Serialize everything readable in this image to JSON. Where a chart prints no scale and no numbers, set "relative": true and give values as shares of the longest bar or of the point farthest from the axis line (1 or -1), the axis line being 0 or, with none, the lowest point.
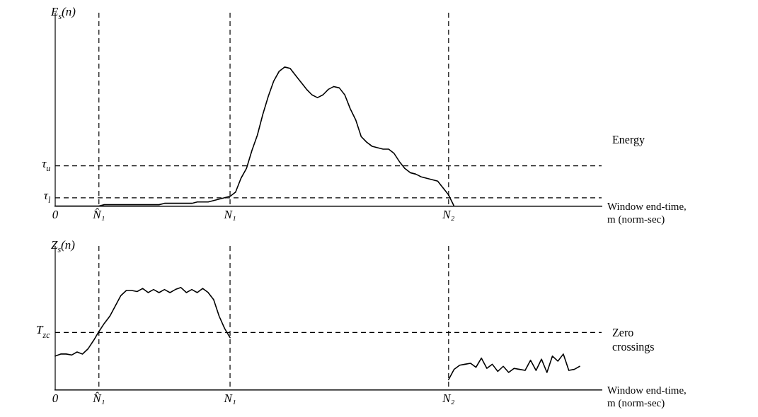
{
  "chart_data": [
    {
      "type": "line",
      "relative": true,
      "ylabel": "E$_{s}$(n)",
      "xlabel": "Window end-time, m (norm-sec)",
      "grid": false,
      "legend": false,
      "marker": "none",
      "line_style": "solid",
      "categories": [
        "0",
        null,
        null,
        null,
        null,
        null,
        null,
        null,
        "N̂₁",
        null,
        null,
        null,
        null,
        null,
        null,
        null,
        null,
        null,
        null,
        null,
        null,
        null,
        null,
        null,
        null,
        null,
        null,
        null,
        null,
        null,
        null,
        null,
        "N₁",
        null,
        null,
        null,
        null,
        null,
        null,
        null,
        null,
        null,
        null,
        null,
        null,
        null,
        null,
        null,
        null,
        null,
        null,
        null,
        null,
        null,
        null,
        null,
        null,
        null,
        null,
        null,
        null,
        null,
        null,
        null,
        null,
        null,
        null,
        null,
        null,
        null,
        null,
        null,
        "N₂",
        null,
        null,
        null,
        null,
        null,
        null,
        null,
        null,
        null,
        null,
        null,
        null,
        null,
        null,
        null,
        null,
        null,
        null,
        null,
        null,
        null,
        null,
        null,
        null,
        null,
        null,
        null,
        null
      ],
      "annotations": [
        "Energy"
      ],
      "series": [
        {
          "color": "#000000",
          "values": [
            0,
            0,
            0,
            0,
            0,
            0,
            0,
            0,
            0,
            0.01,
            0.01,
            0.01,
            0.01,
            0.01,
            0.01,
            0.01,
            0.01,
            0.01,
            0.01,
            0.01,
            0.02,
            0.02,
            0.02,
            0.02,
            0.02,
            0.02,
            0.03,
            0.03,
            0.03,
            0.04,
            0.05,
            0.06,
            0.07,
            0.1,
            0.2,
            0.27,
            0.4,
            0.51,
            0.66,
            0.79,
            0.9,
            0.97,
            1,
            0.99,
            0.94,
            0.89,
            0.84,
            0.8,
            0.78,
            0.8,
            0.84,
            0.86,
            0.85,
            0.8,
            0.7,
            0.62,
            0.5,
            0.46,
            0.43,
            0.42,
            0.41,
            0.41,
            0.38,
            0.32,
            0.27,
            0.24,
            0.23,
            0.21,
            0.2,
            0.19,
            0.18,
            0.13,
            0.08,
            0,
            null,
            null,
            null,
            null,
            null,
            null,
            null,
            null,
            null,
            null,
            null,
            null,
            null,
            null,
            null,
            null,
            null,
            null,
            null,
            null,
            null,
            null,
            null,
            null,
            null,
            null,
            null
          ]
        }
      ],
      "ref_lines": [
        {
          "axis": "x",
          "value": "N̂₁",
          "line_style": "dashed",
          "color": "#000000"
        },
        {
          "axis": "x",
          "value": "N₁",
          "line_style": "dashed",
          "color": "#000000"
        },
        {
          "axis": "x",
          "value": "N₂",
          "line_style": "dashed",
          "color": "#000000"
        },
        {
          "axis": "y",
          "value": 0.29,
          "label": "τ$_{u}$",
          "line_style": "dashed",
          "color": "#000000"
        },
        {
          "axis": "y",
          "value": 0.06,
          "label": "τ$_{l}$",
          "line_style": "dashed",
          "color": "#000000"
        }
      ]
    },
    {
      "type": "line",
      "relative": true,
      "ylabel": "Z$_{s}$(n)",
      "xlabel": "Window end-time, m (norm-sec)",
      "grid": false,
      "legend": false,
      "marker": "none",
      "line_style": "solid",
      "categories": [
        "0",
        null,
        null,
        null,
        null,
        null,
        null,
        null,
        "N̂₁",
        null,
        null,
        null,
        null,
        null,
        null,
        null,
        null,
        null,
        null,
        null,
        null,
        null,
        null,
        null,
        null,
        null,
        null,
        null,
        null,
        null,
        null,
        null,
        "N₁",
        null,
        null,
        null,
        null,
        null,
        null,
        null,
        null,
        null,
        null,
        null,
        null,
        null,
        null,
        null,
        null,
        null,
        null,
        null,
        null,
        null,
        null,
        null,
        null,
        null,
        null,
        null,
        null,
        null,
        null,
        null,
        null,
        null,
        null,
        null,
        null,
        null,
        null,
        null,
        "N₂",
        null,
        null,
        null,
        null,
        null,
        null,
        null,
        null,
        null,
        null,
        null,
        null,
        null,
        null,
        null,
        null,
        null,
        null,
        null,
        null,
        null,
        null,
        null,
        null,
        null,
        null,
        null,
        null
      ],
      "annotations": [
        "Zero crossings"
      ],
      "series": [
        {
          "color": "#000000",
          "values": [
            0.33,
            0.35,
            0.35,
            0.34,
            0.37,
            0.35,
            0.4,
            0.48,
            0.57,
            0.65,
            0.72,
            0.82,
            0.92,
            0.97,
            0.97,
            0.96,
            0.99,
            0.95,
            0.98,
            0.95,
            0.98,
            0.95,
            0.98,
            1,
            0.95,
            0.98,
            0.95,
            0.99,
            0.95,
            0.88,
            0.72,
            0.6,
            0.51,
            null,
            null,
            null,
            null,
            null,
            null,
            null,
            null,
            null,
            null,
            null,
            null,
            null,
            null,
            null,
            null,
            null,
            null,
            null,
            null,
            null,
            null,
            null,
            null,
            null,
            null,
            null,
            null,
            null,
            null,
            null,
            null,
            null,
            null,
            null,
            null,
            null,
            null,
            null,
            0.1,
            0.2,
            0.24,
            0.25,
            0.26,
            0.22,
            0.31,
            0.21,
            0.25,
            0.18,
            0.23,
            0.17,
            0.21,
            0.2,
            0.19,
            0.29,
            0.19,
            0.3,
            0.17,
            0.33,
            0.28,
            0.35,
            0.19,
            0.2,
            0.23,
            null,
            null,
            null,
            null
          ]
        }
      ],
      "ref_lines": [
        {
          "axis": "x",
          "value": "N̂₁",
          "line_style": "dashed",
          "color": "#000000"
        },
        {
          "axis": "x",
          "value": "N₁",
          "line_style": "dashed",
          "color": "#000000"
        },
        {
          "axis": "x",
          "value": "N₂",
          "line_style": "dashed",
          "color": "#000000"
        },
        {
          "axis": "y",
          "value": 0.56,
          "label": "T$_{zc}$",
          "line_style": "dashed",
          "color": "#000000"
        }
      ]
    }
  ]
}
